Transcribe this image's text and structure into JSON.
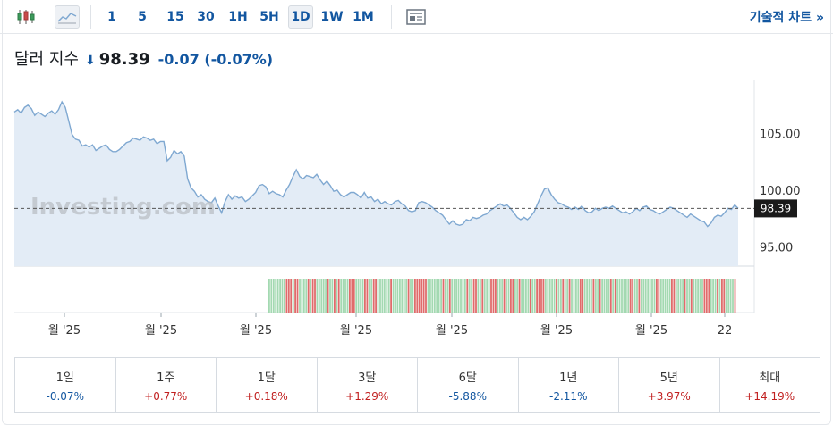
{
  "toolbar": {
    "timeframes": [
      "1",
      "5",
      "15",
      "30",
      "1H",
      "5H",
      "1D",
      "1W",
      "1M"
    ],
    "active_timeframe": "1D",
    "tech_chart_link": "기술적 차트 »"
  },
  "quote": {
    "name": "달러 지수",
    "price": "98.39",
    "change": "-0.07 (-0.07%)",
    "direction": "down"
  },
  "colors": {
    "link_blue": "#1256a0",
    "line": "#7fa8d1",
    "area": "#e3ecf6",
    "vol_up": "#a3d9b1",
    "vol_down": "#e06b6b",
    "neg": "#1256a0",
    "pos": "#c11f1f"
  },
  "chart_data": {
    "type": "area",
    "watermark": "Investing.com",
    "y_ticks": [
      "105.00",
      "100.00",
      "95.00"
    ],
    "y_tick_values": [
      105,
      100,
      95
    ],
    "ylim": [
      93.3,
      108.9
    ],
    "x_tick_labels": [
      "월 '25",
      "월 '25",
      "월 '25",
      "월 '25",
      "월 '25",
      "월 '25",
      "월 '25",
      "22"
    ],
    "last_value": 98.39,
    "last_label": "98.39",
    "values": [
      106.9,
      107.1,
      106.8,
      107.3,
      107.5,
      107.2,
      106.6,
      106.9,
      106.7,
      106.5,
      106.8,
      107.0,
      106.7,
      107.1,
      107.8,
      107.3,
      106.1,
      104.9,
      104.5,
      104.4,
      103.9,
      104.0,
      103.8,
      104.0,
      103.5,
      103.7,
      103.9,
      104.0,
      103.6,
      103.4,
      103.4,
      103.6,
      103.9,
      104.2,
      104.3,
      104.6,
      104.5,
      104.4,
      104.7,
      104.6,
      104.4,
      104.5,
      104.1,
      104.3,
      104.3,
      102.6,
      102.9,
      103.5,
      103.2,
      103.4,
      103.0,
      101.0,
      100.2,
      99.9,
      99.4,
      99.6,
      99.2,
      99.0,
      98.9,
      99.3,
      98.6,
      98.0,
      99.0,
      99.6,
      99.2,
      99.5,
      99.3,
      99.4,
      99.0,
      99.2,
      99.5,
      99.8,
      100.4,
      100.5,
      100.3,
      99.7,
      99.9,
      99.7,
      99.6,
      99.4,
      100.0,
      100.5,
      101.2,
      101.8,
      101.2,
      101.0,
      101.3,
      101.2,
      101.1,
      101.4,
      100.9,
      100.5,
      100.8,
      100.4,
      99.9,
      100.0,
      99.6,
      99.4,
      99.6,
      99.8,
      99.8,
      99.6,
      99.3,
      99.8,
      99.3,
      99.4,
      99.0,
      99.2,
      98.8,
      99.0,
      98.8,
      98.7,
      99.0,
      99.1,
      98.8,
      98.6,
      98.2,
      98.1,
      98.2,
      98.9,
      99.0,
      98.9,
      98.7,
      98.5,
      98.2,
      98.0,
      97.8,
      97.4,
      97.0,
      97.3,
      97.0,
      96.9,
      97.0,
      97.4,
      97.3,
      97.6,
      97.5,
      97.6,
      97.8,
      97.9,
      98.2,
      98.4,
      98.6,
      98.8,
      98.6,
      98.7,
      98.4,
      98.0,
      97.6,
      97.4,
      97.6,
      97.4,
      97.7,
      98.1,
      98.8,
      99.5,
      100.1,
      100.2,
      99.6,
      99.2,
      98.9,
      98.8,
      98.6,
      98.5,
      98.3,
      98.5,
      98.3,
      98.6,
      98.2,
      98.0,
      98.1,
      98.4,
      98.2,
      98.4,
      98.5,
      98.4,
      98.6,
      98.4,
      98.2,
      98.0,
      98.1,
      97.9,
      98.1,
      98.4,
      98.2,
      98.5,
      98.6,
      98.3,
      98.2,
      98.0,
      97.9,
      98.1,
      98.3,
      98.5,
      98.4,
      98.2,
      98.0,
      97.8,
      97.6,
      97.9,
      97.7,
      97.5,
      97.3,
      97.2,
      96.8,
      97.1,
      97.6,
      97.8,
      97.7,
      98.0,
      98.4,
      98.3,
      98.7,
      98.39
    ],
    "volume_bars": "11111111000100111101001111101101011110001111001100111111011111110110000001111111011011111110110011011100011101100110111101100001111101101101111001111011011110101111110011011111110011111001111011011111000111010011110"
  },
  "returns": [
    {
      "label": "1일",
      "value": "-0.07%",
      "sign": "neg"
    },
    {
      "label": "1주",
      "value": "+0.77%",
      "sign": "pos"
    },
    {
      "label": "1달",
      "value": "+0.18%",
      "sign": "pos"
    },
    {
      "label": "3달",
      "value": "+1.29%",
      "sign": "pos"
    },
    {
      "label": "6달",
      "value": "-5.88%",
      "sign": "neg"
    },
    {
      "label": "1년",
      "value": "-2.11%",
      "sign": "neg"
    },
    {
      "label": "5년",
      "value": "+3.97%",
      "sign": "pos"
    },
    {
      "label": "최대",
      "value": "+14.19%",
      "sign": "pos"
    }
  ]
}
